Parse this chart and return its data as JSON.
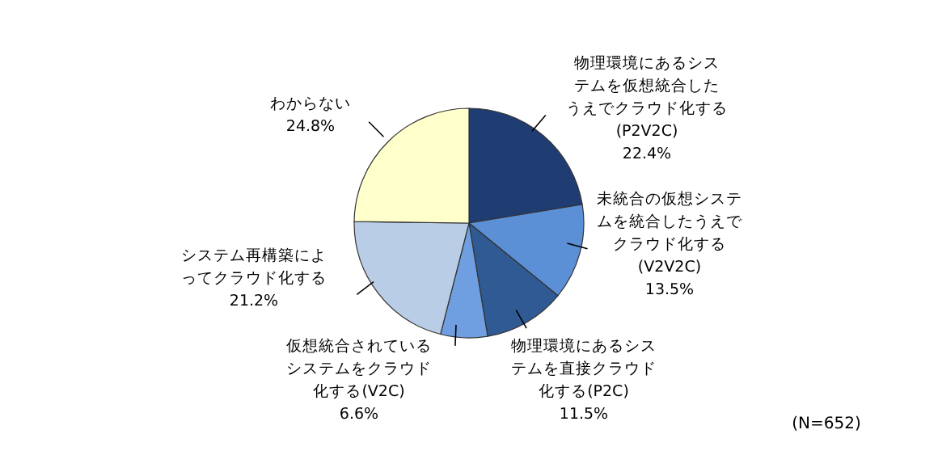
{
  "chart_data": {
    "type": "pie",
    "categories": [
      "物理環境にあるシステムを仮想統合したうえでクラウド化する(P2V2C)",
      "未統合の仮想システムを統合したうえでクラウド化する(V2V2C)",
      "物理環境にあるシステムを直接クラウド化する(P2C)",
      "仮想統合されているシステムをクラウド化する(V2C)",
      "システム再構築によってクラウド化する",
      "わからない"
    ],
    "values": [
      22.4,
      13.5,
      11.5,
      6.6,
      21.2,
      24.8
    ],
    "value_labels": [
      "22.4%",
      "13.5%",
      "11.5%",
      "6.6%",
      "21.2%",
      "24.8%"
    ],
    "colors": [
      "#1f3d73",
      "#5b8fd6",
      "#2f5a93",
      "#6f9fe0",
      "#b9cde6",
      "#ffffcc"
    ],
    "annotations": [
      "(N=652)"
    ]
  }
}
